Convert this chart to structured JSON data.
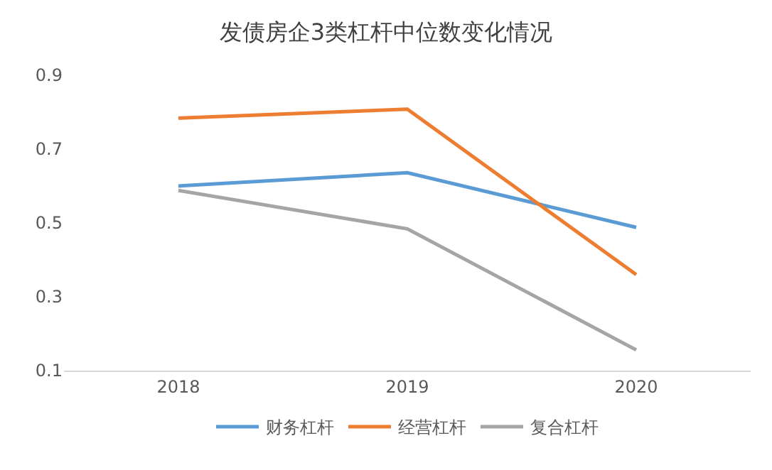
{
  "chart_data": {
    "type": "line",
    "title": "发债房企3类杠杆中位数变化情况",
    "categories": [
      "2018",
      "2019",
      "2020"
    ],
    "series": [
      {
        "name": "财务杠杆",
        "color": "#5b9bd5",
        "values": [
          0.6,
          0.636,
          0.488
        ]
      },
      {
        "name": "经营杠杆",
        "color": "#ed7d31",
        "values": [
          0.784,
          0.808,
          0.36
        ]
      },
      {
        "name": "复合杠杆",
        "color": "#a5a5a5",
        "values": [
          0.588,
          0.484,
          0.156
        ]
      }
    ],
    "ylim": [
      0.1,
      0.9
    ],
    "yticks": [
      0.1,
      0.3,
      0.5,
      0.7,
      0.9
    ],
    "grid": false,
    "legend": "bottom",
    "marker": "none",
    "line_style": "solid"
  }
}
